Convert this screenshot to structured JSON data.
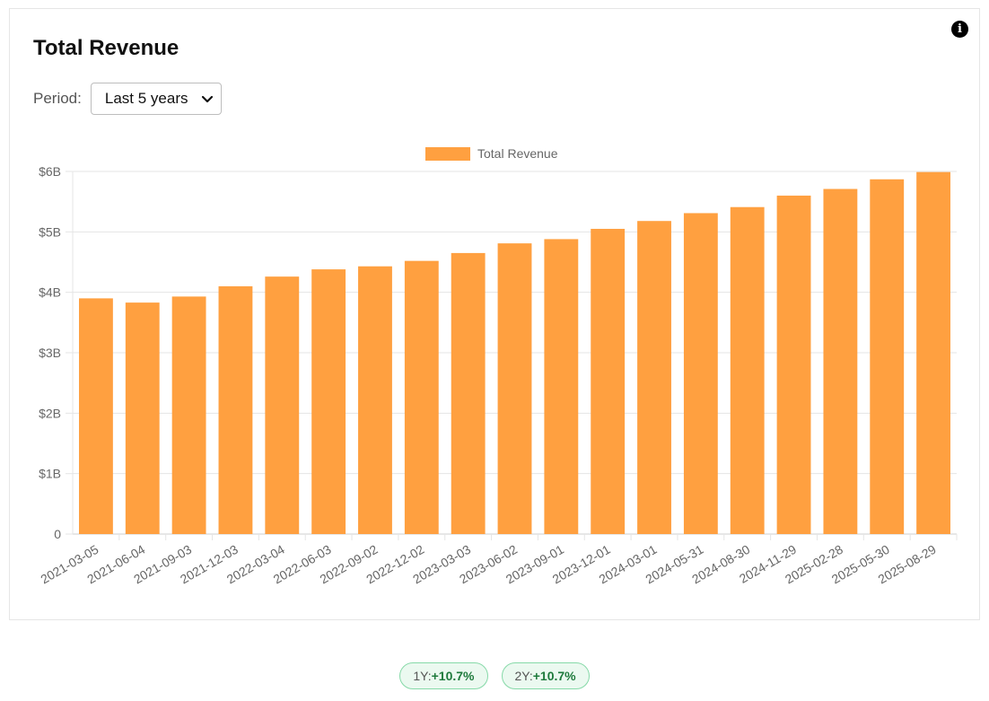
{
  "title": "Total Revenue",
  "period": {
    "label": "Period:",
    "selected": "Last 5 years"
  },
  "icons": {
    "info": "info-icon",
    "dropdown": "chevron-down-icon"
  },
  "colors": {
    "bar": "#ffa040",
    "positive": "#1e7a3c",
    "badge_bg": "#ebf9f0",
    "badge_border": "#86d9a8"
  },
  "chart_data": {
    "type": "bar",
    "categories": [
      "2021-03-05",
      "2021-06-04",
      "2021-09-03",
      "2021-12-03",
      "2022-03-04",
      "2022-06-03",
      "2022-09-02",
      "2022-12-02",
      "2023-03-03",
      "2023-06-02",
      "2023-09-01",
      "2023-12-01",
      "2024-03-01",
      "2024-05-31",
      "2024-08-30",
      "2024-11-29",
      "2025-02-28",
      "2025-05-30",
      "2025-08-29"
    ],
    "series": [
      {
        "name": "Total Revenue",
        "values": [
          3.9,
          3.83,
          3.93,
          4.1,
          4.26,
          4.38,
          4.43,
          4.52,
          4.65,
          4.81,
          4.88,
          5.05,
          5.18,
          5.31,
          5.41,
          5.6,
          5.71,
          5.87,
          5.99
        ],
        "color": "#ffa040"
      }
    ],
    "unit": "billions USD",
    "ylim": [
      0,
      6
    ],
    "y_ticks": [
      "0",
      "$1B",
      "$2B",
      "$3B",
      "$4B",
      "$5B",
      "$6B"
    ],
    "grid": true,
    "legend": "top-center",
    "x_tick_rotation": "diagonal"
  },
  "badges": [
    {
      "label": "1Y:",
      "value": "+10.7%"
    },
    {
      "label": "2Y:",
      "value": "+10.7%"
    }
  ]
}
